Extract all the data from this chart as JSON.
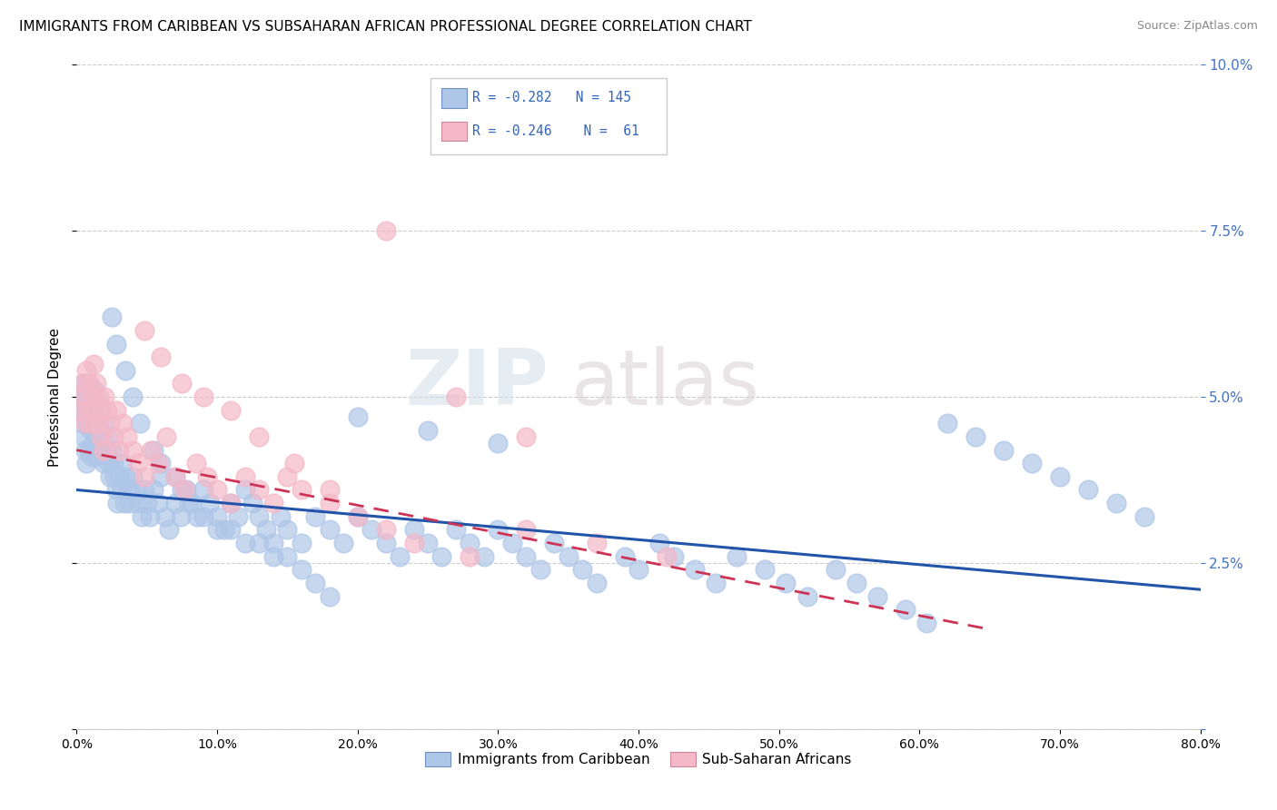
{
  "title": "IMMIGRANTS FROM CARIBBEAN VS SUBSAHARAN AFRICAN PROFESSIONAL DEGREE CORRELATION CHART",
  "source": "Source: ZipAtlas.com",
  "ylabel": "Professional Degree",
  "legend1_label": "Immigrants from Caribbean",
  "legend2_label": "Sub-Saharan Africans",
  "r1": -0.282,
  "n1": 145,
  "r2": -0.246,
  "n2": 61,
  "xlim": [
    0.0,
    0.8
  ],
  "ylim": [
    0.0,
    0.1
  ],
  "xticks": [
    0.0,
    0.1,
    0.2,
    0.3,
    0.4,
    0.5,
    0.6,
    0.7,
    0.8
  ],
  "yticks": [
    0.0,
    0.025,
    0.05,
    0.075,
    0.1
  ],
  "blue_color": "#aec6e8",
  "pink_color": "#f4b8c8",
  "blue_line_color": "#2255aa",
  "pink_line_color": "#cc3355",
  "watermark_zip": "ZIP",
  "watermark_atlas": "atlas",
  "blue_x": [
    0.002,
    0.003,
    0.004,
    0.005,
    0.005,
    0.006,
    0.006,
    0.007,
    0.007,
    0.008,
    0.008,
    0.009,
    0.009,
    0.01,
    0.01,
    0.011,
    0.011,
    0.012,
    0.012,
    0.013,
    0.013,
    0.014,
    0.014,
    0.015,
    0.015,
    0.016,
    0.017,
    0.018,
    0.019,
    0.02,
    0.021,
    0.022,
    0.023,
    0.024,
    0.025,
    0.026,
    0.027,
    0.028,
    0.029,
    0.03,
    0.032,
    0.033,
    0.034,
    0.035,
    0.037,
    0.038,
    0.04,
    0.042,
    0.044,
    0.046,
    0.048,
    0.05,
    0.052,
    0.055,
    0.058,
    0.06,
    0.063,
    0.066,
    0.07,
    0.074,
    0.078,
    0.082,
    0.086,
    0.09,
    0.095,
    0.1,
    0.105,
    0.11,
    0.115,
    0.12,
    0.125,
    0.13,
    0.135,
    0.14,
    0.145,
    0.15,
    0.16,
    0.17,
    0.18,
    0.19,
    0.2,
    0.21,
    0.22,
    0.23,
    0.24,
    0.25,
    0.26,
    0.27,
    0.28,
    0.29,
    0.3,
    0.31,
    0.32,
    0.33,
    0.34,
    0.35,
    0.36,
    0.37,
    0.39,
    0.4,
    0.415,
    0.425,
    0.44,
    0.455,
    0.47,
    0.49,
    0.505,
    0.52,
    0.54,
    0.555,
    0.57,
    0.59,
    0.605,
    0.025,
    0.028,
    0.035,
    0.04,
    0.045,
    0.055,
    0.06,
    0.07,
    0.075,
    0.08,
    0.09,
    0.1,
    0.11,
    0.12,
    0.13,
    0.14,
    0.15,
    0.16,
    0.17,
    0.18,
    0.62,
    0.64,
    0.66,
    0.68,
    0.7,
    0.72,
    0.74,
    0.76,
    0.2,
    0.25,
    0.3
  ],
  "blue_y": [
    0.048,
    0.05,
    0.046,
    0.052,
    0.044,
    0.05,
    0.042,
    0.048,
    0.04,
    0.052,
    0.046,
    0.048,
    0.042,
    0.05,
    0.045,
    0.047,
    0.041,
    0.049,
    0.043,
    0.051,
    0.045,
    0.047,
    0.041,
    0.049,
    0.043,
    0.045,
    0.042,
    0.044,
    0.04,
    0.046,
    0.042,
    0.044,
    0.04,
    0.038,
    0.042,
    0.04,
    0.038,
    0.036,
    0.034,
    0.038,
    0.036,
    0.04,
    0.034,
    0.038,
    0.036,
    0.034,
    0.038,
    0.036,
    0.034,
    0.032,
    0.036,
    0.034,
    0.032,
    0.036,
    0.034,
    0.038,
    0.032,
    0.03,
    0.034,
    0.032,
    0.036,
    0.034,
    0.032,
    0.036,
    0.034,
    0.032,
    0.03,
    0.034,
    0.032,
    0.036,
    0.034,
    0.032,
    0.03,
    0.028,
    0.032,
    0.03,
    0.028,
    0.032,
    0.03,
    0.028,
    0.032,
    0.03,
    0.028,
    0.026,
    0.03,
    0.028,
    0.026,
    0.03,
    0.028,
    0.026,
    0.03,
    0.028,
    0.026,
    0.024,
    0.028,
    0.026,
    0.024,
    0.022,
    0.026,
    0.024,
    0.028,
    0.026,
    0.024,
    0.022,
    0.026,
    0.024,
    0.022,
    0.02,
    0.024,
    0.022,
    0.02,
    0.018,
    0.016,
    0.062,
    0.058,
    0.054,
    0.05,
    0.046,
    0.042,
    0.04,
    0.038,
    0.036,
    0.034,
    0.032,
    0.03,
    0.03,
    0.028,
    0.028,
    0.026,
    0.026,
    0.024,
    0.022,
    0.02,
    0.046,
    0.044,
    0.042,
    0.04,
    0.038,
    0.036,
    0.034,
    0.032,
    0.047,
    0.045,
    0.043
  ],
  "pink_x": [
    0.002,
    0.004,
    0.005,
    0.006,
    0.007,
    0.008,
    0.009,
    0.01,
    0.011,
    0.012,
    0.013,
    0.014,
    0.015,
    0.016,
    0.017,
    0.018,
    0.019,
    0.02,
    0.022,
    0.024,
    0.026,
    0.028,
    0.03,
    0.033,
    0.036,
    0.04,
    0.044,
    0.048,
    0.053,
    0.058,
    0.064,
    0.07,
    0.077,
    0.085,
    0.093,
    0.1,
    0.11,
    0.12,
    0.13,
    0.14,
    0.15,
    0.16,
    0.18,
    0.2,
    0.22,
    0.24,
    0.28,
    0.32,
    0.37,
    0.42,
    0.048,
    0.06,
    0.075,
    0.09,
    0.11,
    0.13,
    0.155,
    0.18,
    0.22,
    0.27,
    0.32
  ],
  "pink_y": [
    0.048,
    0.052,
    0.05,
    0.046,
    0.054,
    0.048,
    0.052,
    0.046,
    0.05,
    0.055,
    0.048,
    0.052,
    0.046,
    0.05,
    0.044,
    0.048,
    0.042,
    0.05,
    0.048,
    0.046,
    0.044,
    0.048,
    0.042,
    0.046,
    0.044,
    0.042,
    0.04,
    0.038,
    0.042,
    0.04,
    0.044,
    0.038,
    0.036,
    0.04,
    0.038,
    0.036,
    0.034,
    0.038,
    0.036,
    0.034,
    0.038,
    0.036,
    0.034,
    0.032,
    0.03,
    0.028,
    0.026,
    0.03,
    0.028,
    0.026,
    0.06,
    0.056,
    0.052,
    0.05,
    0.048,
    0.044,
    0.04,
    0.036,
    0.075,
    0.05,
    0.044
  ],
  "blue_trendline_x": [
    0.0,
    0.8
  ],
  "blue_trendline_y": [
    0.036,
    0.021
  ],
  "pink_trendline_x": [
    0.0,
    0.65
  ],
  "pink_trendline_y": [
    0.042,
    0.015
  ]
}
